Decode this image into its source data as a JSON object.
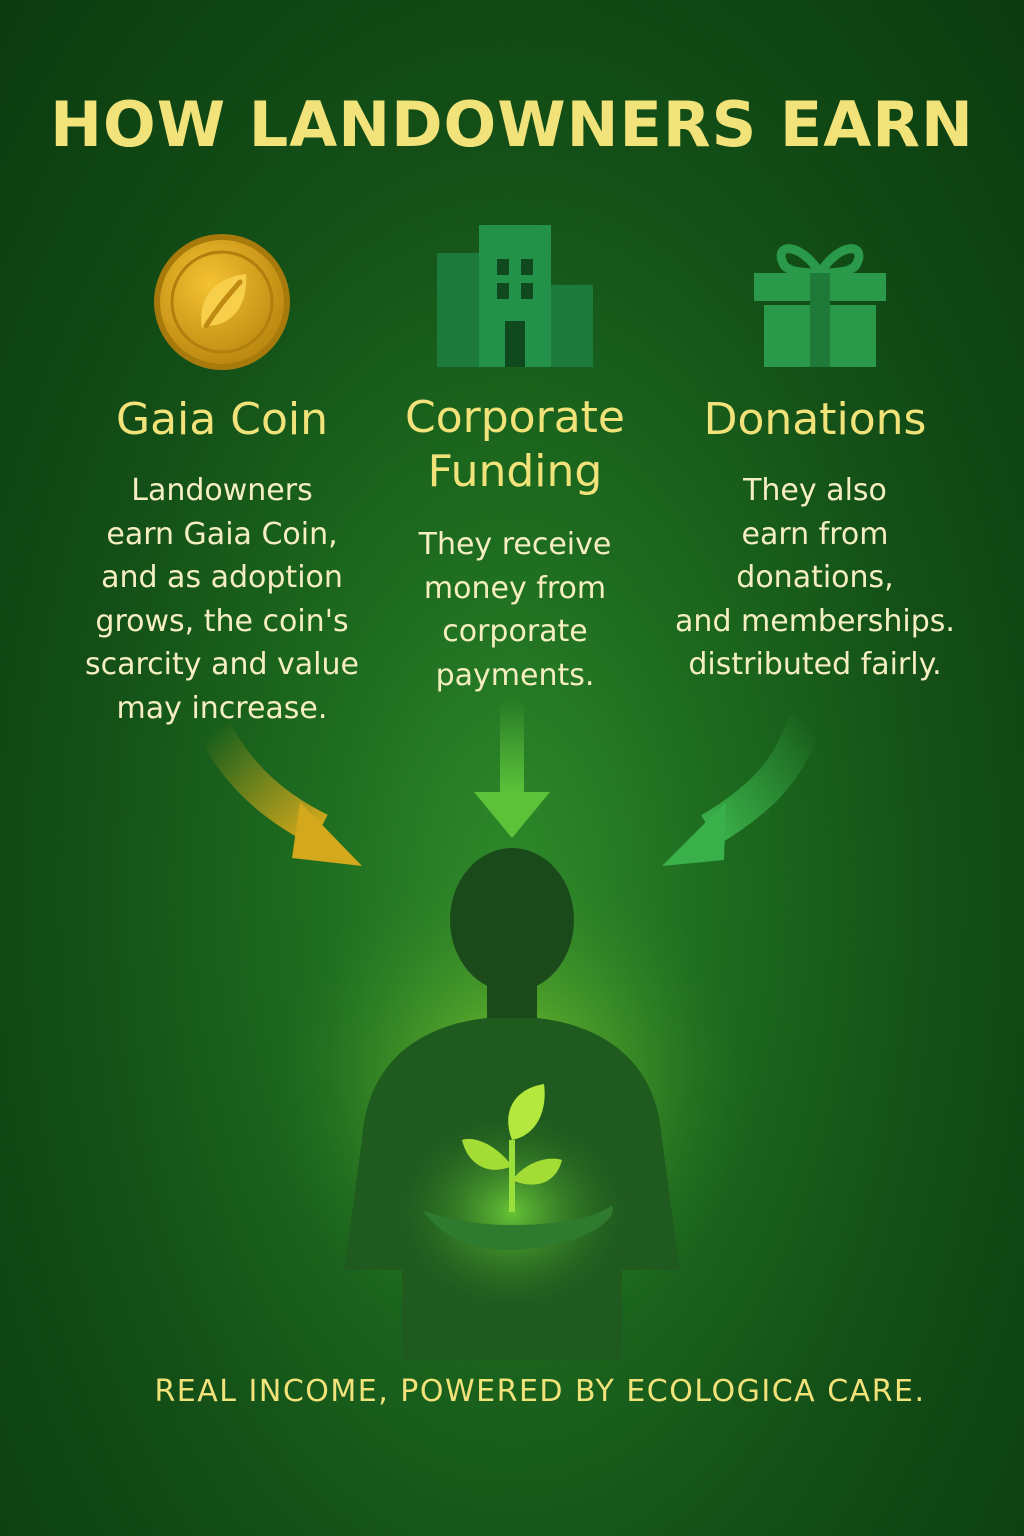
{
  "title": "HOW LANDOWNERS EARN",
  "columns": [
    {
      "icon": "gold-leaf-coin-icon",
      "heading": "Gaia Coin",
      "description": "Landowners\nearn Gaia Coin,\nand as adoption\ngrows, the coin's\nscarcity and value\nmay increase."
    },
    {
      "icon": "office-building-icon",
      "heading": "Corporate\nFunding",
      "description": "They receive\nmoney from\ncorporate\npayments."
    },
    {
      "icon": "gift-box-icon",
      "heading": "Donations",
      "description": "They also\nearn from\ndonations,\nand memberships.\ndistributed fairly."
    }
  ],
  "footer": "REAL INCOME, POWERED BY ECOLOGICA CARE.",
  "colors": {
    "background": "#175a1a",
    "accent_yellow": "#f2e27a",
    "coin_gold": "#d9a21a",
    "building_green": "#1f8a3f",
    "gift_green": "#2a9a4a",
    "sprout_green": "#9be03a"
  }
}
